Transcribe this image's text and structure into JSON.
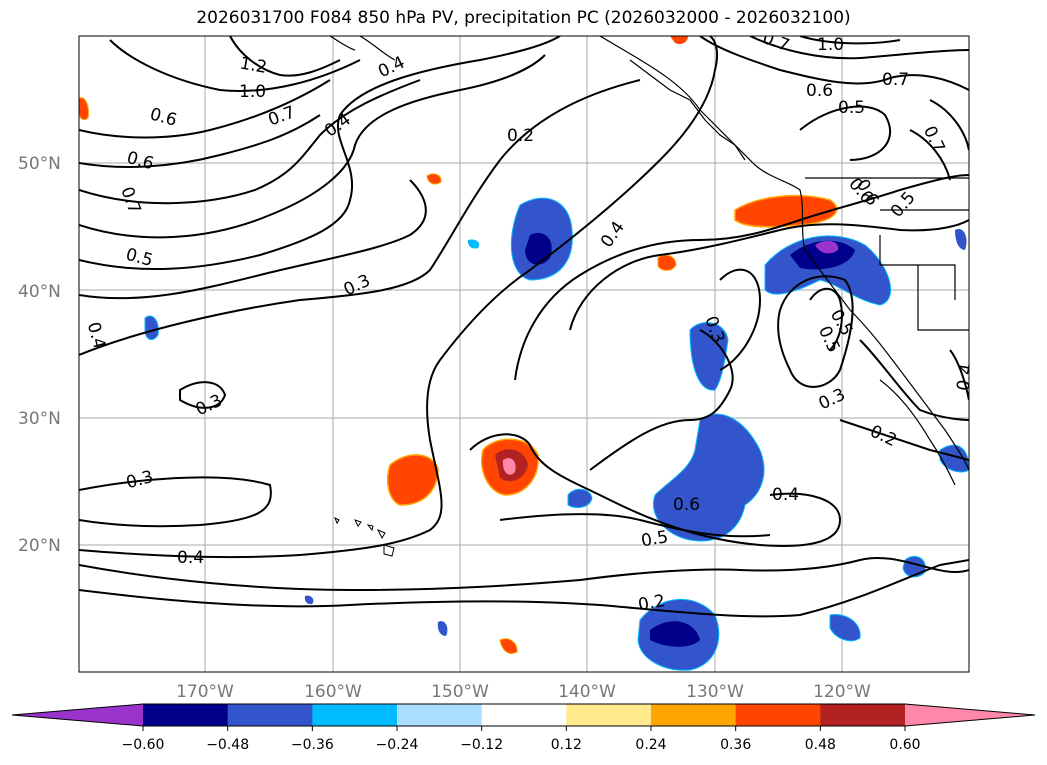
{
  "title": "2026031700 F084 850 hPa PV, precipitation PC (2026032000 - 2026032100)",
  "latitude_labels": [
    "50°N",
    "40°N",
    "30°N",
    "20°N"
  ],
  "longitude_labels": [
    "170°W",
    "160°W",
    "150°W",
    "140°W",
    "130°W",
    "120°W"
  ],
  "contour_labels": [
    "0.2",
    "0.4",
    "0.6",
    "0.6",
    "0.7",
    "0.5",
    "0.3",
    "0.4",
    "0.3",
    "0.3",
    "0.4",
    "0.6",
    "0.4",
    "0.5",
    "0.2",
    "0.3",
    "0.3",
    "0.2",
    "0.4",
    "0.5",
    "0.6",
    "0.5",
    "0.7",
    "1.0",
    "1.2",
    "0.7",
    "0.4",
    "0.4",
    "0.7",
    "0.5",
    "0.6",
    "0.7",
    "1.0",
    "0.5",
    "0.6"
  ],
  "colorbar": {
    "tick_labels": [
      "−0.60",
      "−0.48",
      "−0.36",
      "−0.24",
      "−0.12",
      "0.12",
      "0.24",
      "0.36",
      "0.48",
      "0.60"
    ],
    "colors": [
      "#9933cc",
      "#00008b",
      "#3355cc",
      "#00bbff",
      "#aaddff",
      "#ffffff",
      "#ffe98a",
      "#ffa500",
      "#ff4500",
      "#b22222",
      "#ff88aa",
      "#ff88aa"
    ]
  },
  "colors": {
    "grid": "#aaaaaa",
    "contour": "#000000",
    "neg_strong": "#00008b",
    "neg_mid": "#3355cc",
    "neg_light": "#00bbff",
    "pos_light": "#ffe98a",
    "pos_mid": "#ffa500",
    "pos_strong": "#ff4500",
    "pos_dark": "#b22222",
    "pos_max": "#ff88aa"
  }
}
